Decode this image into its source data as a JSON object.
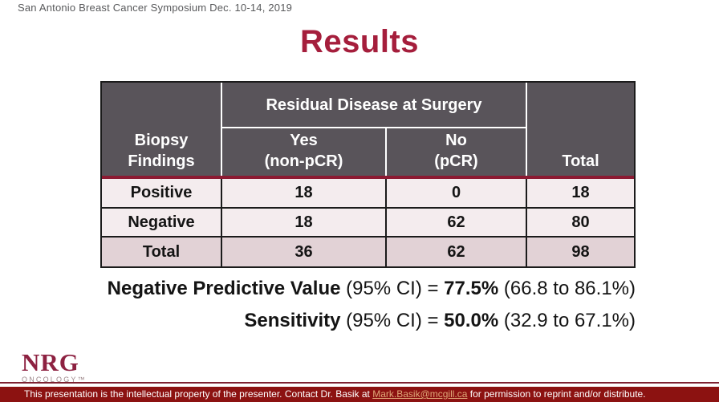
{
  "event_line": "San Antonio Breast Cancer Symposium Dec. 10-14, 2019",
  "title": "Results",
  "table": {
    "span_header": "Residual Disease at Surgery",
    "row_header": "Biopsy Findings",
    "col_yes_top": "Yes",
    "col_yes_bottom": "(non-pCR)",
    "col_no_top": "No",
    "col_no_bottom": "(pCR)",
    "col_total": "Total",
    "rows": [
      {
        "label": "Positive",
        "values": [
          "18",
          "0",
          "18"
        ]
      },
      {
        "label": "Negative",
        "values": [
          "18",
          "62",
          "80"
        ]
      },
      {
        "label": "Total",
        "values": [
          "36",
          "62",
          "98"
        ]
      }
    ]
  },
  "stats": {
    "npv_label": "Negative Predictive Value",
    "npv_mid": " (95% CI) = ",
    "npv_value": "77.5%",
    "npv_ci": " (66.8 to 86.1%)",
    "sens_label": "Sensitivity",
    "sens_mid": " (95% CI) = ",
    "sens_value": "50.0%",
    "sens_ci": " (32.9 to 67.1%)"
  },
  "logo": {
    "name": "NRG",
    "subtitle": "ONCOLOGY™"
  },
  "footer": {
    "pre": "This presentation is the intellectual property of the presenter. Contact Dr. Basik at ",
    "email": "Mark.Basik@mcgill.ca",
    "post": " for permission to reprint and/or distribute."
  },
  "colors": {
    "title_red": "#a51e3c",
    "table_header_gray": "#59545a",
    "row_pink": "#f4ecee",
    "total_row_mauve": "#e2d2d6",
    "maroon_line": "#8c1a32",
    "footer_red": "#8c1211",
    "email_link": "#dfa878"
  }
}
